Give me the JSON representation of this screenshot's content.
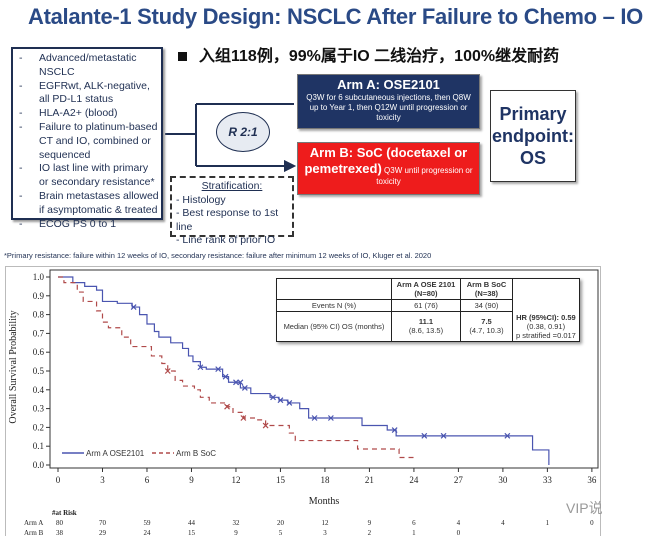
{
  "title": "Atalante-1 Study Design: NSCLC After Failure to Chemo – IO",
  "cn_note": "入组118例，99%属于IO 二线治疗，100%继发耐药",
  "criteria": [
    "Advanced/metastatic NSCLC",
    "EGFRwt, ALK-negative, all PD-L1 status",
    "HLA-A2+ (blood)",
    "Failure to platinum-based CT and IO, combined or sequenced",
    "IO last line with primary or secondary resistance*",
    "Brain metastases allowed if asymptomatic & treated",
    "ECOG PS 0 to 1"
  ],
  "randomization": "R 2:1",
  "armA": {
    "title": "Arm A: OSE2101",
    "desc": "Q3W for 6 subcutaneous injections, then Q8W up to Year 1, then Q12W until progression or toxicity"
  },
  "armB": {
    "title": "Arm B: SoC (docetaxel or pemetrexed)",
    "desc": "Q3W until progression or toxicity"
  },
  "endpoint": "Primary endpoint: OS",
  "stratification": {
    "heading": "Stratification:",
    "items": [
      "Histology",
      "Best response to 1st line",
      "Line rank of prior IO"
    ]
  },
  "footnote": "*Primary resistance: failure within 12 weeks of IO, secondary resistance: failure after minimum 12 weeks of IO,  Kluger et al. 2020",
  "table": {
    "col1": "Arm A OSE 2101 (N=80)",
    "col2": "Arm B SoC (N=38)",
    "row1": {
      "label": "Events N (%)",
      "a": "61 (76)",
      "b": "34 (90)"
    },
    "row2": {
      "label": "Median (95% CI) OS (months)",
      "a": "11.1",
      "a_ci": "(8.6, 13.5)",
      "b": "7.5",
      "b_ci": "(4.7, 10.3)"
    },
    "hr": "HR (95%CI): 0.59",
    "hr_ci": "(0.38, 0.91)",
    "p": "p stratified =0.017"
  },
  "watermark": "VIP说",
  "chart_data": {
    "type": "line",
    "title": "",
    "xlabel": "Months",
    "ylabel": "Overall Survival Probability",
    "xlim": [
      0,
      36
    ],
    "ylim": [
      0,
      1
    ],
    "xticks": [
      "0",
      "3",
      "6",
      "9",
      "12",
      "15",
      "18",
      "21",
      "24",
      "27",
      "30",
      "33",
      "36"
    ],
    "yticks": [
      "0.0",
      "0.1",
      "0.2",
      "0.3",
      "0.4",
      "0.5",
      "0.6",
      "0.7",
      "0.8",
      "0.9",
      "1.0"
    ],
    "legend_position": "bottom-left",
    "series": [
      {
        "name": "Arm A OSE2101",
        "color": "#4a55b0",
        "dash": false,
        "steps": [
          [
            0,
            1.0
          ],
          [
            1.0,
            0.97
          ],
          [
            1.8,
            0.95
          ],
          [
            2.6,
            0.93
          ],
          [
            3.0,
            0.87
          ],
          [
            4.0,
            0.86
          ],
          [
            5.0,
            0.84
          ],
          [
            5.5,
            0.8
          ],
          [
            6.0,
            0.75
          ],
          [
            6.5,
            0.71
          ],
          [
            6.8,
            0.68
          ],
          [
            7.6,
            0.65
          ],
          [
            8.4,
            0.62
          ],
          [
            8.8,
            0.58
          ],
          [
            9.1,
            0.55
          ],
          [
            9.6,
            0.52
          ],
          [
            10.0,
            0.51
          ],
          [
            11.1,
            0.47
          ],
          [
            11.5,
            0.44
          ],
          [
            12.3,
            0.41
          ],
          [
            13.0,
            0.38
          ],
          [
            14.3,
            0.36
          ],
          [
            14.9,
            0.345
          ],
          [
            15.5,
            0.33
          ],
          [
            16.3,
            0.3
          ],
          [
            16.9,
            0.25
          ],
          [
            20.5,
            0.21
          ],
          [
            22.2,
            0.186
          ],
          [
            22.8,
            0.155
          ],
          [
            32.0,
            0.08
          ],
          [
            33.1,
            0.0
          ]
        ],
        "censored": [
          [
            5.1,
            0.84
          ],
          [
            9.6,
            0.52
          ],
          [
            10.8,
            0.51
          ],
          [
            11.3,
            0.47
          ],
          [
            12.0,
            0.44
          ],
          [
            12.3,
            0.44
          ],
          [
            12.6,
            0.41
          ],
          [
            14.5,
            0.36
          ],
          [
            15.0,
            0.345
          ],
          [
            15.6,
            0.33
          ],
          [
            17.3,
            0.25
          ],
          [
            18.4,
            0.25
          ],
          [
            22.7,
            0.186
          ],
          [
            24.7,
            0.155
          ],
          [
            26.0,
            0.155
          ],
          [
            30.3,
            0.155
          ]
        ]
      },
      {
        "name": "Arm B SoC",
        "color": "#b04a4a",
        "dash": true,
        "steps": [
          [
            0,
            1.0
          ],
          [
            0.4,
            0.97
          ],
          [
            1.3,
            0.92
          ],
          [
            1.7,
            0.87
          ],
          [
            2.6,
            0.82
          ],
          [
            3.0,
            0.76
          ],
          [
            3.4,
            0.73
          ],
          [
            4.3,
            0.68
          ],
          [
            4.9,
            0.63
          ],
          [
            6.3,
            0.58
          ],
          [
            7.0,
            0.54
          ],
          [
            7.4,
            0.5
          ],
          [
            7.9,
            0.45
          ],
          [
            8.4,
            0.42
          ],
          [
            9.2,
            0.4
          ],
          [
            9.6,
            0.36
          ],
          [
            10.2,
            0.33
          ],
          [
            11.4,
            0.31
          ],
          [
            11.8,
            0.28
          ],
          [
            12.5,
            0.25
          ],
          [
            13.3,
            0.24
          ],
          [
            14.0,
            0.21
          ],
          [
            15.6,
            0.17
          ],
          [
            16.0,
            0.13
          ],
          [
            20.2,
            0.085
          ],
          [
            23.0,
            0.04
          ],
          [
            24.2,
            0.04
          ]
        ],
        "censored": [
          [
            7.4,
            0.5
          ],
          [
            11.4,
            0.31
          ],
          [
            12.5,
            0.25
          ],
          [
            14.0,
            0.21
          ]
        ]
      }
    ],
    "at_risk": {
      "title": "#at Risk",
      "rows": [
        {
          "label": "Arm A",
          "values": [
            "80",
            "70",
            "59",
            "44",
            "32",
            "20",
            "12",
            "9",
            "6",
            "4",
            "4",
            "1",
            "0"
          ]
        },
        {
          "label": "Arm B",
          "values": [
            "38",
            "29",
            "24",
            "15",
            "9",
            "5",
            "3",
            "2",
            "1",
            "0"
          ]
        }
      ]
    }
  }
}
